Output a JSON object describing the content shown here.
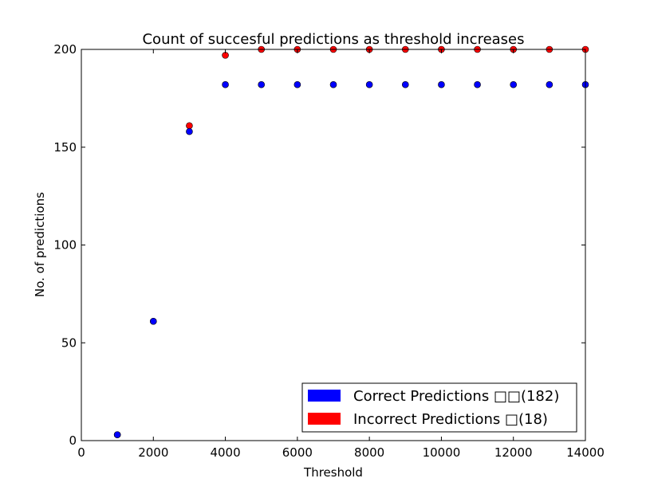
{
  "chart_data": {
    "type": "scatter",
    "title": "Count of succesful predictions as threshold increases",
    "xlabel": "Threshold",
    "ylabel": "No. of predictions",
    "xlim": [
      0,
      14000
    ],
    "ylim": [
      0,
      200
    ],
    "xticks": [
      0,
      2000,
      4000,
      6000,
      8000,
      10000,
      12000,
      14000
    ],
    "yticks": [
      0,
      50,
      100,
      150,
      200
    ],
    "grid": false,
    "legend_position": "lower-right",
    "series": [
      {
        "name": "Incorrect Predictions □(18)",
        "color": "#ff0000",
        "x": [
          1000,
          2000,
          3000,
          4000,
          5000,
          6000,
          7000,
          8000,
          9000,
          10000,
          11000,
          12000,
          13000,
          14000
        ],
        "y": [
          3,
          61,
          161,
          197,
          200,
          200,
          200,
          200,
          200,
          200,
          200,
          200,
          200,
          200
        ]
      },
      {
        "name": "Correct Predictions □□(182)",
        "color": "#0000ff",
        "x": [
          1000,
          2000,
          3000,
          4000,
          5000,
          6000,
          7000,
          8000,
          9000,
          10000,
          11000,
          12000,
          13000,
          14000
        ],
        "y": [
          3,
          61,
          158,
          182,
          182,
          182,
          182,
          182,
          182,
          182,
          182,
          182,
          182,
          182
        ]
      }
    ],
    "legend_order": [
      1,
      0
    ]
  }
}
